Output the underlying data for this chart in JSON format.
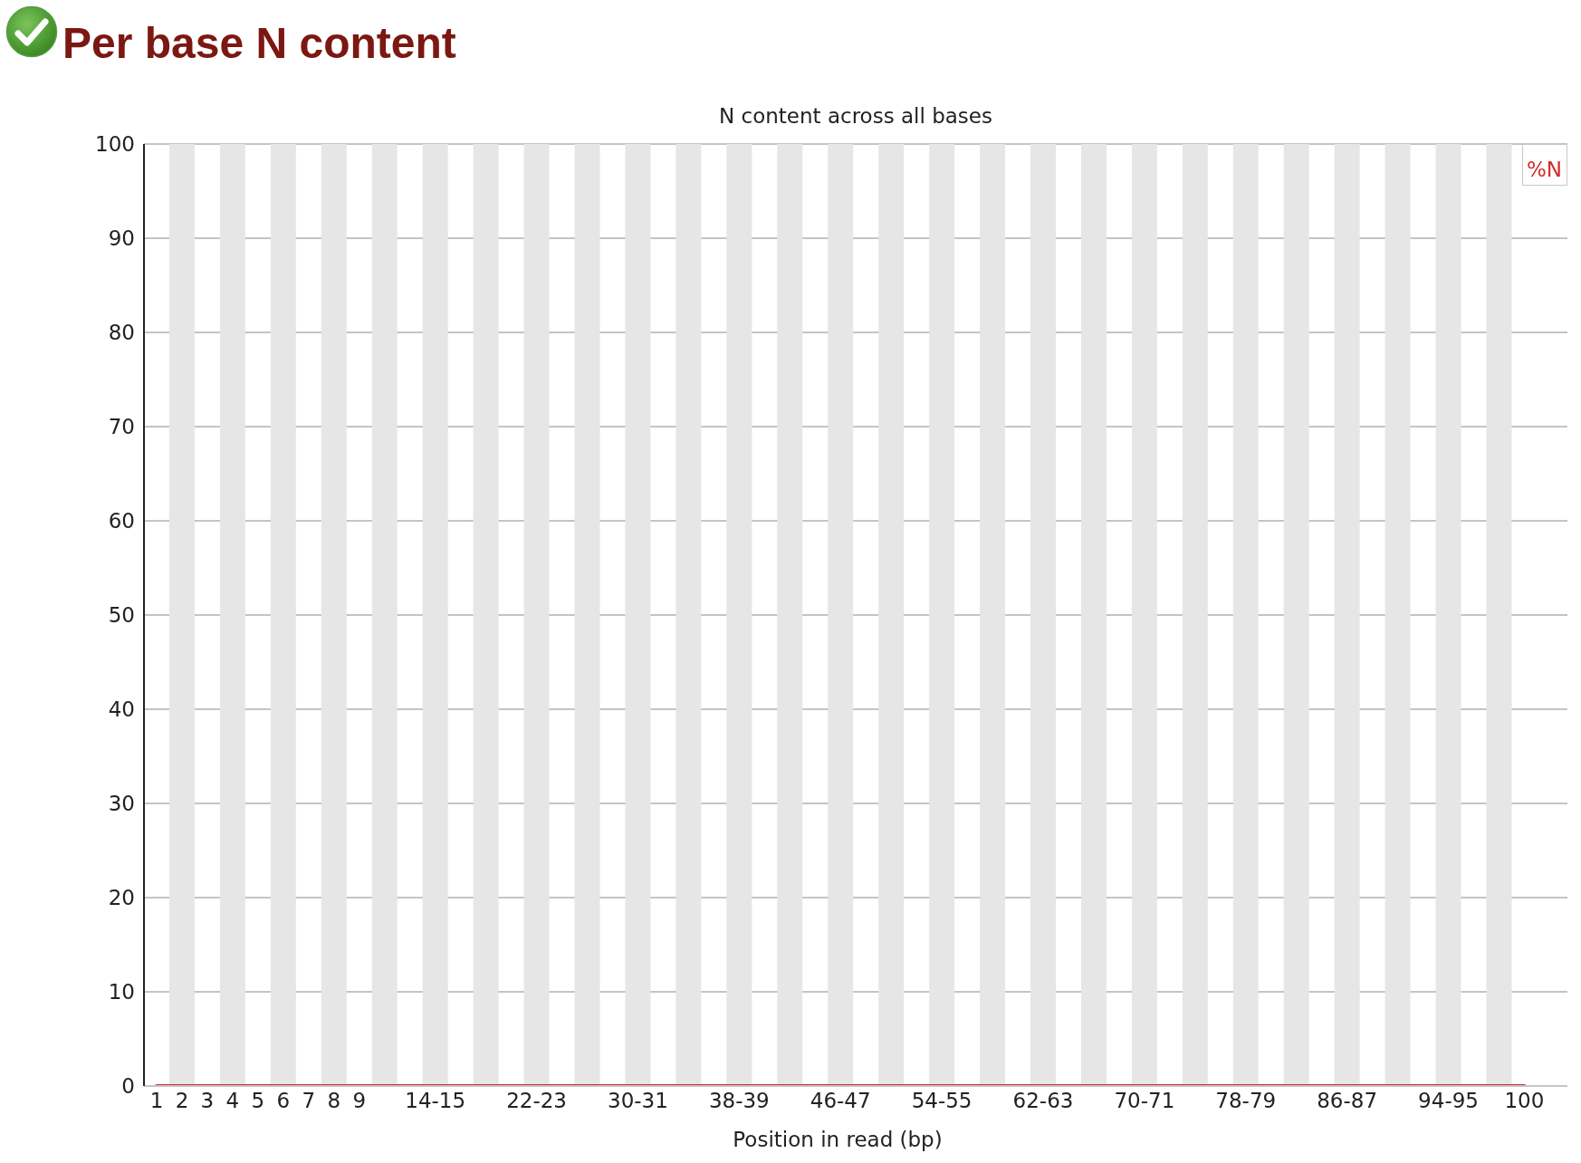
{
  "chart_data": {
    "type": "line",
    "title": "Per base N content",
    "subtitle": "N content across all bases",
    "xlabel": "Position in read (bp)",
    "categories": [
      "1",
      "2",
      "3",
      "4",
      "5",
      "6",
      "7",
      "8",
      "9",
      null,
      null,
      "14-15",
      null,
      null,
      null,
      "22-23",
      null,
      null,
      null,
      "30-31",
      null,
      null,
      null,
      "38-39",
      null,
      null,
      null,
      "46-47",
      null,
      null,
      null,
      "54-55",
      null,
      null,
      null,
      "62-63",
      null,
      null,
      null,
      "70-71",
      null,
      null,
      null,
      "78-79",
      null,
      null,
      null,
      "86-87",
      null,
      null,
      null,
      "94-95",
      null,
      null,
      "100"
    ],
    "series": [
      {
        "name": "%N",
        "color": "#d42a2a",
        "values": [
          0,
          0,
          0,
          0,
          0,
          0,
          0,
          0,
          0,
          0,
          0,
          0,
          0,
          0,
          0,
          0,
          0,
          0,
          0,
          0,
          0,
          0,
          0,
          0,
          0,
          0,
          0,
          0,
          0,
          0,
          0,
          0,
          0,
          0,
          0,
          0,
          0,
          0,
          0,
          0,
          0,
          0,
          0,
          0,
          0,
          0,
          0,
          0,
          0,
          0,
          0,
          0,
          0,
          0,
          0
        ]
      }
    ],
    "ylim": [
      0,
      100
    ],
    "yticks": [
      0,
      10,
      20,
      30,
      40,
      50,
      60,
      70,
      80,
      90,
      100
    ],
    "grid": "y",
    "legend": "top right",
    "line_style": "solid"
  }
}
